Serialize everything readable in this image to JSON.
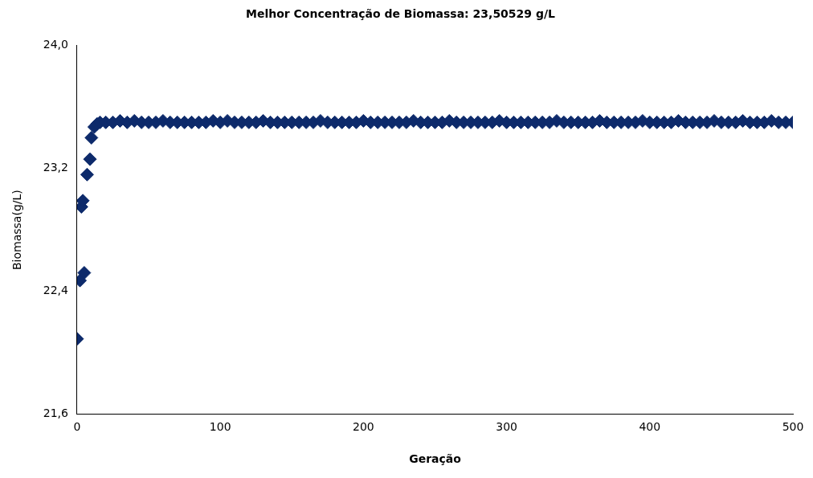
{
  "chart_data": {
    "type": "scatter",
    "title": "Melhor Concentração de Biomassa: 23,50529 g/L",
    "xlabel": "Geração",
    "ylabel": "Biomassa(g/L)",
    "xlim": [
      0,
      500
    ],
    "xticks": [
      0,
      100,
      200,
      300,
      400,
      500
    ],
    "ylim": [
      21.6,
      24.0
    ],
    "yticks": [
      {
        "value": 21.6,
        "label": "21,6"
      },
      {
        "value": 22.4,
        "label": "22,4"
      },
      {
        "value": 23.2,
        "label": "23,2"
      },
      {
        "value": 24.0,
        "label": "24,0"
      }
    ],
    "marker": "diamond",
    "grid": false,
    "legend": false,
    "series": [
      {
        "color": "#0d2a6b",
        "x": [
          0,
          2,
          3,
          4,
          5,
          7,
          9,
          10,
          12,
          14,
          16,
          20,
          25,
          30,
          35,
          40,
          45,
          50,
          55,
          60,
          65,
          70,
          75,
          80,
          85,
          90,
          95,
          100,
          105,
          110,
          115,
          120,
          125,
          130,
          135,
          140,
          145,
          150,
          155,
          160,
          165,
          170,
          175,
          180,
          185,
          190,
          195,
          200,
          205,
          210,
          215,
          220,
          225,
          230,
          235,
          240,
          245,
          250,
          255,
          260,
          265,
          270,
          275,
          280,
          285,
          290,
          295,
          300,
          305,
          310,
          315,
          320,
          325,
          330,
          335,
          340,
          345,
          350,
          355,
          360,
          365,
          370,
          375,
          380,
          385,
          390,
          395,
          400,
          405,
          410,
          415,
          420,
          425,
          430,
          435,
          440,
          445,
          450,
          455,
          460,
          465,
          470,
          475,
          480,
          485,
          490,
          495,
          500
        ],
        "values": [
          22.09,
          22.47,
          22.95,
          22.99,
          22.52,
          23.16,
          23.26,
          23.4,
          23.47,
          23.49,
          23.5,
          23.5,
          23.5,
          23.51,
          23.5,
          23.51,
          23.5,
          23.5,
          23.5,
          23.51,
          23.5,
          23.5,
          23.5,
          23.5,
          23.5,
          23.5,
          23.51,
          23.5,
          23.51,
          23.5,
          23.5,
          23.5,
          23.5,
          23.51,
          23.5,
          23.5,
          23.5,
          23.5,
          23.5,
          23.5,
          23.5,
          23.51,
          23.5,
          23.5,
          23.5,
          23.5,
          23.5,
          23.51,
          23.5,
          23.5,
          23.5,
          23.5,
          23.5,
          23.5,
          23.51,
          23.5,
          23.5,
          23.5,
          23.5,
          23.51,
          23.5,
          23.5,
          23.5,
          23.5,
          23.5,
          23.5,
          23.51,
          23.5,
          23.5,
          23.5,
          23.5,
          23.5,
          23.5,
          23.5,
          23.51,
          23.5,
          23.5,
          23.5,
          23.5,
          23.5,
          23.51,
          23.5,
          23.5,
          23.5,
          23.5,
          23.5,
          23.51,
          23.5,
          23.5,
          23.5,
          23.5,
          23.51,
          23.5,
          23.5,
          23.5,
          23.5,
          23.51,
          23.5,
          23.5,
          23.5,
          23.51,
          23.5,
          23.5,
          23.5,
          23.51,
          23.5,
          23.5,
          23.5
        ]
      }
    ]
  }
}
